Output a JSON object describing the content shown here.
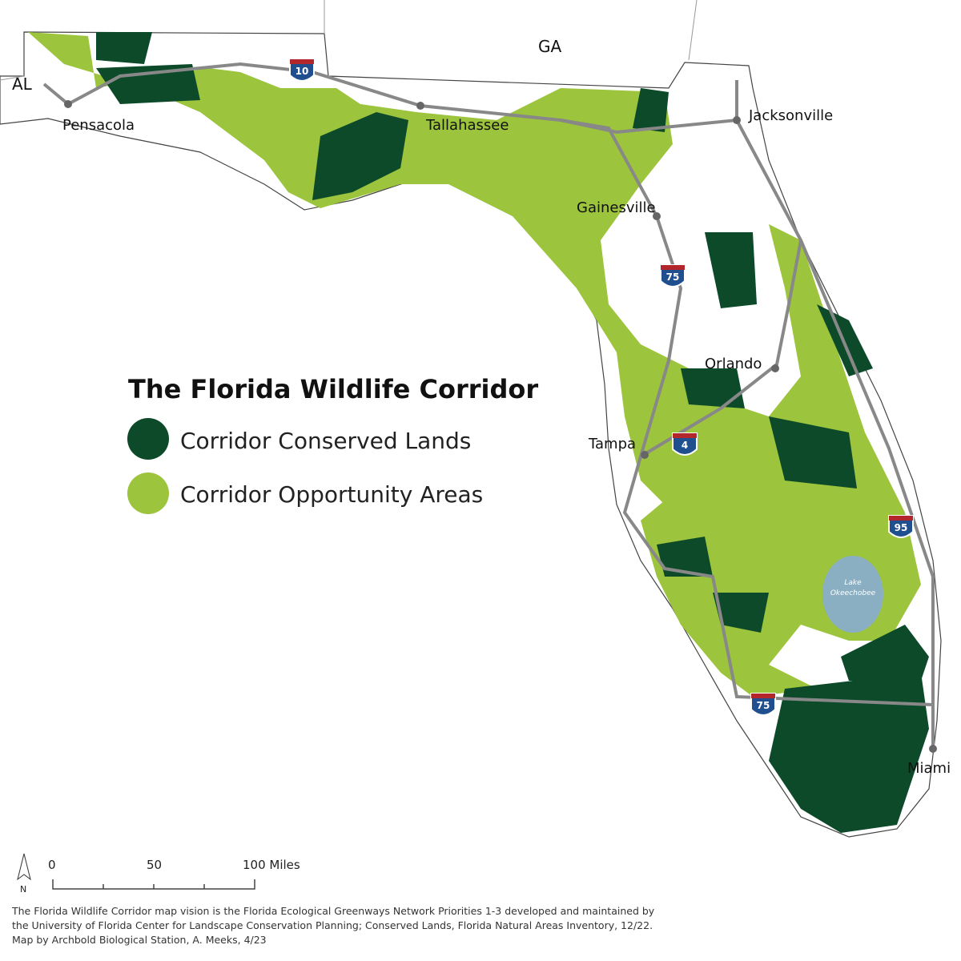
{
  "legend": {
    "title": "The Florida Wildlife Corridor",
    "items": [
      {
        "label": "Corridor Conserved Lands",
        "color": "#0d4a2a"
      },
      {
        "label": "Corridor Opportunity Areas",
        "color": "#9cc43c"
      }
    ]
  },
  "states": [
    "AL",
    "GA"
  ],
  "cities": [
    "Pensacola",
    "Tallahassee",
    "Jacksonville",
    "Gainesville",
    "Orlando",
    "Tampa",
    "Miami"
  ],
  "highways": [
    "10",
    "75",
    "4",
    "95",
    "75"
  ],
  "lake": [
    "Lake",
    "Okeechobee"
  ],
  "scale": [
    "0",
    "50",
    "100 Miles"
  ],
  "north": "N",
  "credits": [
    "The Florida Wildlife Corridor map vision is the Florida Ecological Greenways Network Priorities 1-3 developed and maintained by",
    "the University of Florida Center for Landscape Conservation Planning; Conserved Lands, Florida Natural Areas Inventory, 12/22.",
    "Map by Archbold Biological Station, A. Meeks, 4/23"
  ]
}
